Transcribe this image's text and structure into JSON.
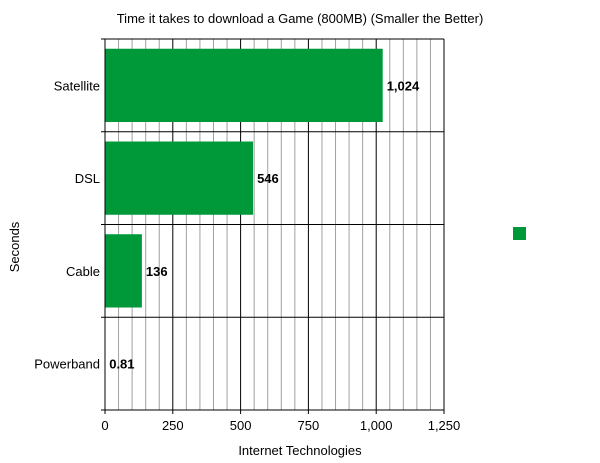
{
  "chart_data": {
    "type": "bar",
    "orientation": "horizontal",
    "title": "Time it takes to download a Game (800MB) (Smaller the Better)",
    "xlabel": "Internet Technologies",
    "ylabel": "Seconds",
    "categories": [
      "Satellite",
      "DSL",
      "Cable",
      "Powerband"
    ],
    "values": [
      1024,
      546,
      136,
      0.81
    ],
    "data_labels": [
      "1,024",
      "546",
      "136",
      "0.81"
    ],
    "xlim": [
      0,
      1250
    ],
    "xticks": [
      0,
      250,
      500,
      750,
      1000,
      1250
    ],
    "xtick_labels": [
      "0",
      "250",
      "500",
      "750",
      "1,000",
      "1,250"
    ],
    "minor_step": 50,
    "grid": true,
    "legend": "right",
    "colors": {
      "bar": "#00993a",
      "major_grid": "#000000",
      "minor_grid": "#a0a0a0"
    }
  }
}
